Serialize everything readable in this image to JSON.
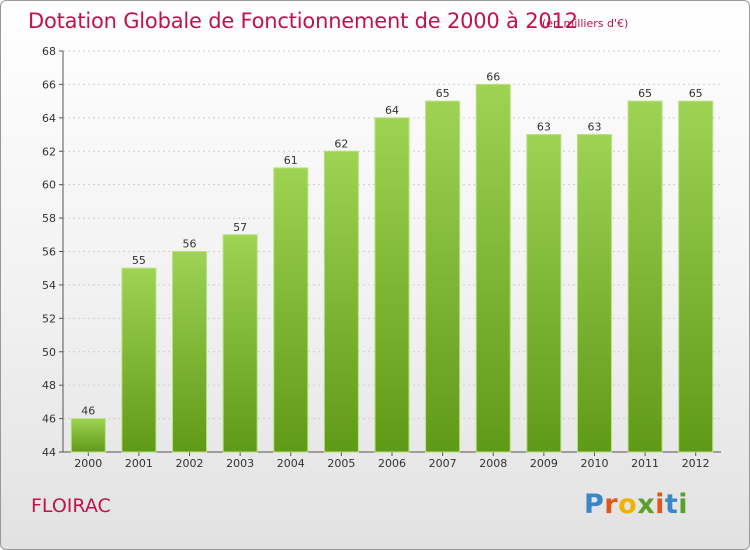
{
  "title": "Dotation Globale de Fonctionnement de 2000 à 2012",
  "unit": "(en milliers d'€)",
  "commune": "FLOIRAC",
  "logo": {
    "letters": [
      "P",
      "r",
      "o",
      "x",
      "i",
      "t",
      "i"
    ],
    "colors": [
      "#3a87c8",
      "#e0561d",
      "#f0b400",
      "#5aa02c",
      "#e0561d",
      "#3a87c8",
      "#5aa02c"
    ]
  },
  "colors": {
    "bar_top": "#9ed353",
    "bar_bottom": "#5f9a17",
    "text_accent": "#c1124a"
  },
  "chart_data": {
    "type": "bar",
    "title": "Dotation Globale de Fonctionnement de 2000 à 2012",
    "subtitle": "(en milliers d'€)",
    "categories": [
      "2000",
      "2001",
      "2002",
      "2003",
      "2004",
      "2005",
      "2006",
      "2007",
      "2008",
      "2009",
      "2010",
      "2011",
      "2012"
    ],
    "values": [
      46,
      55,
      56,
      57,
      61,
      62,
      64,
      65,
      66,
      63,
      63,
      65,
      65
    ],
    "ylim": [
      44,
      68
    ],
    "yticks": [
      44,
      46,
      48,
      50,
      52,
      54,
      56,
      58,
      60,
      62,
      64,
      66,
      68
    ],
    "grid": true,
    "xlabel": "",
    "ylabel": ""
  }
}
